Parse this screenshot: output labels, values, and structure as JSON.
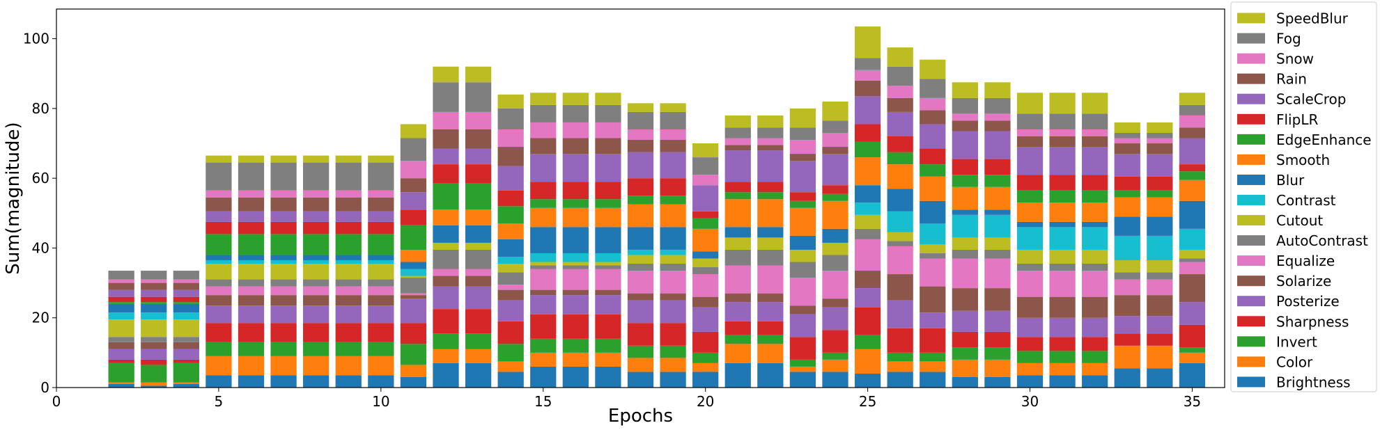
{
  "chart_data": {
    "type": "bar",
    "stacked": true,
    "xlabel": "Epochs",
    "ylabel": "Sum(magnitude)",
    "xlim": [
      0,
      36
    ],
    "ylim": [
      0,
      108.5
    ],
    "xticks": [
      0,
      5,
      10,
      15,
      20,
      25,
      30,
      35
    ],
    "yticks": [
      0,
      20,
      40,
      60,
      80,
      100
    ],
    "legend_position": "outside-right",
    "grid": false,
    "x": [
      2,
      3,
      4,
      5,
      6,
      7,
      8,
      9,
      10,
      11,
      12,
      13,
      14,
      15,
      16,
      17,
      18,
      19,
      20,
      21,
      22,
      23,
      24,
      25,
      26,
      27,
      28,
      29,
      30,
      31,
      32,
      33,
      34,
      35
    ],
    "series": [
      {
        "name": "Brightness",
        "color": "#1f77b4",
        "values": [
          1,
          0.5,
          1,
          3.5,
          3.5,
          3.5,
          3.5,
          3.5,
          3.5,
          3,
          7,
          7,
          4.5,
          6,
          6,
          6,
          4.5,
          4.5,
          4.5,
          7,
          7,
          4.5,
          4.5,
          4,
          4.5,
          4.5,
          3,
          3,
          3.5,
          3.5,
          3.5,
          5.5,
          5.5,
          7
        ]
      },
      {
        "name": "Color",
        "color": "#ff7f0e",
        "values": [
          0.5,
          1,
          0.5,
          5.5,
          5.5,
          5.5,
          5.5,
          5.5,
          5.5,
          3.5,
          4,
          4,
          3,
          4,
          4,
          4,
          4,
          4,
          2.5,
          5.5,
          5.5,
          1.5,
          3.5,
          7,
          3,
          3,
          5,
          5,
          3.5,
          3.5,
          3.5,
          6.5,
          6.5,
          3
        ]
      },
      {
        "name": "Invert",
        "color": "#2ca02c",
        "values": [
          5.5,
          5,
          5.5,
          4,
          4,
          4,
          4,
          4,
          4,
          6,
          4.5,
          4.5,
          5,
          4,
          4,
          4,
          3.5,
          3.5,
          3,
          2.5,
          2.5,
          2,
          2,
          4,
          2.5,
          2.5,
          3.5,
          3.5,
          3.5,
          3.5,
          3.5,
          0,
          0,
          1.5
        ]
      },
      {
        "name": "Sharpness",
        "color": "#d62728",
        "values": [
          1,
          1.5,
          1,
          5.5,
          5.5,
          5.5,
          5.5,
          5.5,
          5.5,
          6,
          7,
          7,
          6.5,
          7,
          7,
          7,
          6.5,
          6.5,
          6,
          4,
          4,
          6.5,
          6.5,
          8,
          7,
          7,
          4.5,
          4.5,
          4,
          4,
          4,
          3.5,
          3.5,
          6.5
        ]
      },
      {
        "name": "Posterize",
        "color": "#9467bd",
        "values": [
          3,
          3,
          3,
          5,
          5,
          5,
          5,
          5,
          5,
          7,
          6.5,
          6.5,
          6,
          5.5,
          5.5,
          5.5,
          6.5,
          6.5,
          7,
          5.5,
          5.5,
          6.5,
          6.5,
          5.5,
          8,
          4.5,
          6,
          6,
          5.5,
          5.5,
          5.5,
          5,
          5,
          6.5
        ]
      },
      {
        "name": "Solarize",
        "color": "#8c564b",
        "values": [
          2,
          2,
          2,
          3,
          3,
          3,
          3,
          3,
          3,
          1,
          3,
          3,
          3,
          1.5,
          1.5,
          1.5,
          2,
          2,
          3,
          2.5,
          2.5,
          2.5,
          2.5,
          5,
          7.5,
          7.5,
          6.5,
          6.5,
          6,
          6,
          6,
          6,
          6,
          8
        ]
      },
      {
        "name": "Equalize",
        "color": "#e377c2",
        "values": [
          0,
          0,
          0,
          2.5,
          2.5,
          2.5,
          2.5,
          2.5,
          2.5,
          0.5,
          2,
          2,
          1.5,
          6,
          6,
          6,
          6.5,
          6.5,
          6.5,
          8,
          8,
          8,
          8,
          9,
          8,
          8,
          8.5,
          8.5,
          7.5,
          7.5,
          7.5,
          4.5,
          4.5,
          3.5
        ]
      },
      {
        "name": "AutoContrast",
        "color": "#7f7f7f",
        "values": [
          1.5,
          1.5,
          1.5,
          2,
          2,
          2,
          2,
          2,
          2,
          4.5,
          5.5,
          5.5,
          3.5,
          1,
          1,
          1,
          2,
          2,
          2,
          4.5,
          4.5,
          4.5,
          4.5,
          3,
          1.5,
          1.5,
          2.5,
          2.5,
          2,
          2,
          2,
          2,
          2,
          1
        ]
      },
      {
        "name": "Cutout",
        "color": "#bcbd22",
        "values": [
          5,
          5,
          5,
          4.5,
          4.5,
          4.5,
          4.5,
          4.5,
          4.5,
          0.5,
          2,
          2,
          2.5,
          1,
          1,
          1,
          2.5,
          2.5,
          2.5,
          3.5,
          3.5,
          3.5,
          3.5,
          4,
          2.5,
          2.5,
          3.5,
          3.5,
          4,
          4,
          4,
          3.5,
          3.5,
          2.5
        ]
      },
      {
        "name": "Contrast",
        "color": "#17becf",
        "values": [
          2,
          2,
          2,
          1,
          1,
          1,
          1,
          1,
          1,
          2,
          0,
          0,
          2,
          2.5,
          2.5,
          2.5,
          1.5,
          1.5,
          0,
          0,
          0,
          0,
          0,
          3.5,
          6,
          6,
          6.5,
          6.5,
          6.5,
          6.5,
          6.5,
          7,
          7,
          6
        ]
      },
      {
        "name": "Blur",
        "color": "#1f77b4",
        "values": [
          2.5,
          2.5,
          2.5,
          1.5,
          1.5,
          1.5,
          1.5,
          1.5,
          1.5,
          2,
          5,
          5,
          5,
          7.5,
          7.5,
          7.5,
          6.5,
          6.5,
          2,
          3,
          3,
          4,
          4,
          5,
          6.5,
          6.5,
          1.5,
          1.5,
          1.5,
          1.5,
          1.5,
          5.5,
          5.5,
          8
        ]
      },
      {
        "name": "Smooth",
        "color": "#ff7f0e",
        "values": [
          0,
          0,
          0,
          0,
          0,
          0,
          0,
          0,
          0,
          3.5,
          4.5,
          4.5,
          4.5,
          5.5,
          5.5,
          5.5,
          6.5,
          6.5,
          6.5,
          8,
          8,
          8,
          8,
          8,
          7,
          7,
          6.5,
          6.5,
          5.5,
          5.5,
          5.5,
          5.5,
          5.5,
          6
        ]
      },
      {
        "name": "EdgeEnhance",
        "color": "#2ca02c",
        "values": [
          0.5,
          0.5,
          0.5,
          6,
          6,
          6,
          6,
          6,
          6,
          7,
          7.5,
          7.5,
          5,
          2.5,
          2.5,
          2.5,
          2.5,
          2.5,
          3,
          2,
          2,
          2,
          2,
          4.5,
          3.5,
          3.5,
          3.5,
          3.5,
          3.5,
          3.5,
          3.5,
          2,
          2,
          2.5
        ]
      },
      {
        "name": "FlipLR",
        "color": "#d62728",
        "values": [
          1.5,
          1.5,
          1.5,
          3.5,
          3.5,
          3.5,
          3.5,
          3.5,
          3.5,
          4.5,
          5.5,
          5.5,
          4.5,
          5,
          5,
          5,
          5,
          5,
          2,
          3,
          3,
          2.5,
          2.5,
          5,
          4.5,
          4.5,
          4.5,
          4.5,
          4.5,
          4.5,
          4.5,
          4,
          4,
          2
        ]
      },
      {
        "name": "ScaleCrop",
        "color": "#9467bd",
        "values": [
          2,
          2,
          2,
          3,
          3,
          3,
          3,
          3,
          3,
          5,
          4.5,
          4.5,
          7,
          8,
          8,
          8,
          7.5,
          7.5,
          7.5,
          9,
          9,
          9,
          9,
          8,
          7,
          7,
          8,
          8,
          8,
          8,
          8,
          6.5,
          6.5,
          7.5
        ]
      },
      {
        "name": "Rain",
        "color": "#8c564b",
        "values": [
          2,
          2,
          2,
          4,
          4,
          4,
          4,
          4,
          4,
          4,
          5.5,
          5.5,
          5.5,
          4.5,
          4.5,
          4.5,
          3.5,
          3.5,
          0,
          1.5,
          1.5,
          2,
          2,
          4.5,
          4,
          4,
          3,
          3,
          3,
          3,
          3,
          3,
          3,
          3
        ]
      },
      {
        "name": "Snow",
        "color": "#e377c2",
        "values": [
          1,
          1,
          1,
          2,
          2,
          2,
          2,
          2,
          2,
          5,
          5,
          5,
          5,
          4.5,
          4.5,
          4.5,
          3,
          3,
          3,
          2,
          2,
          4,
          4,
          3,
          3.5,
          3.5,
          2,
          2,
          2,
          2,
          2,
          1.5,
          1.5,
          3.5
        ]
      },
      {
        "name": "Fog",
        "color": "#7f7f7f",
        "values": [
          2.5,
          2.5,
          2.5,
          8,
          8,
          8,
          8,
          8,
          8,
          6.5,
          8.5,
          8.5,
          6,
          5,
          5,
          5,
          5,
          5,
          5,
          3,
          3,
          3.5,
          3.5,
          3.5,
          5.5,
          5.5,
          4.5,
          4.5,
          4.5,
          4.5,
          4.5,
          1.5,
          1.5,
          3
        ]
      },
      {
        "name": "SpeedBlur",
        "color": "#bcbd22",
        "values": [
          0,
          0,
          0,
          2,
          2,
          2,
          2,
          2,
          2,
          4,
          4.5,
          4.5,
          4,
          3.5,
          3.5,
          3.5,
          2.5,
          2.5,
          4,
          3.5,
          3.5,
          5.5,
          5.5,
          9,
          5.5,
          5.5,
          4.5,
          4.5,
          6,
          6,
          6,
          3,
          3,
          3.5
        ]
      }
    ]
  }
}
